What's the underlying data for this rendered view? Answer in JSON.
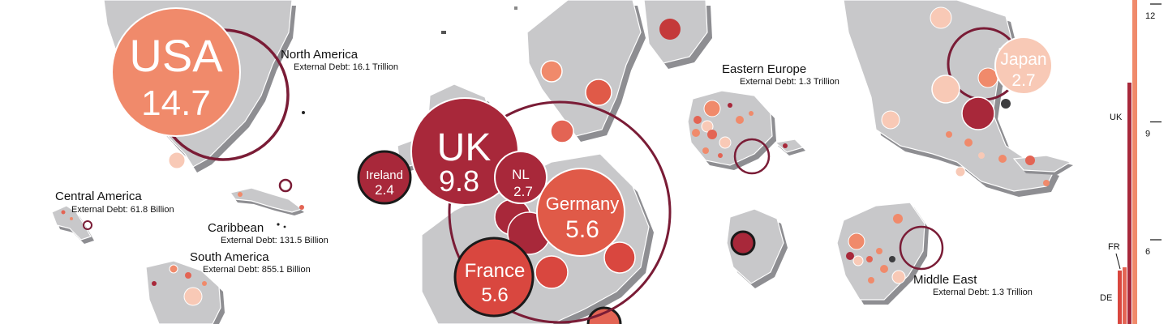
{
  "colors": {
    "land": "#c8c8ca",
    "shadow": "#8e8e92",
    "salmon": "#f08a6b",
    "coral": "#e36454",
    "crimson": "#a8283a",
    "maroon": "#7a1c36",
    "pale": "#f8c9b6",
    "dark": "#3d3d3f"
  },
  "bubbles": {
    "usa": {
      "code": "USA",
      "value": "14.7"
    },
    "uk": {
      "code": "UK",
      "value": "9.8"
    },
    "ireland": {
      "code": "Ireland",
      "value": "2.4"
    },
    "nl": {
      "code": "NL",
      "value": "2.7"
    },
    "germany": {
      "code": "Germany",
      "value": "5.6"
    },
    "france": {
      "code": "France",
      "value": "5.6"
    },
    "japan": {
      "code": "Japan",
      "value": "2.7"
    }
  },
  "regions": {
    "north_america": {
      "name": "North America",
      "debt": "External Debt:  16.1 Trillion"
    },
    "central_america": {
      "name": "Central America",
      "debt": "External Debt:  61.8 Billion"
    },
    "caribbean": {
      "name": "Caribbean",
      "debt": "External Debt:  131.5 Billion"
    },
    "south_america": {
      "name": "South America",
      "debt": "External Debt:  855.1 Billion"
    },
    "eastern_europe": {
      "name": "Eastern Europe",
      "debt": "External Debt:  1.3 Trillion"
    },
    "middle_east": {
      "name": "Middle East",
      "debt": "External Debt:  1.3 Trillion"
    }
  },
  "sidebar": {
    "ticks": [
      {
        "label": "12",
        "value": 12
      },
      {
        "label": "9",
        "value": 9
      },
      {
        "label": "6",
        "value": 6
      }
    ],
    "bar_labels": {
      "uk": "UK",
      "fr": "FR",
      "de": "DE"
    },
    "bars": [
      {
        "code": "UK",
        "value": 9.8
      },
      {
        "code": "FR",
        "value": 5.6
      },
      {
        "code": "DE",
        "value": 5.6
      }
    ]
  }
}
